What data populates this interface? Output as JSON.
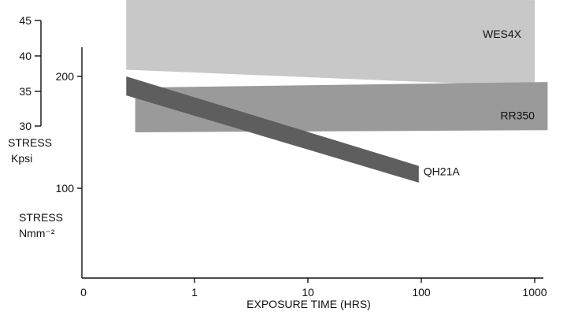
{
  "chart_data": {
    "type": "area",
    "x_scale": "log",
    "xlabel": "EXPOSURE TIME (HRS)",
    "x_tick_labels": [
      "0",
      "1",
      "10",
      "100",
      "1000"
    ],
    "ylabel_left_inner": [
      "STRESS",
      "Kpsi"
    ],
    "ylabel_left_outer": [
      "STRESS",
      "Nmm⁻²"
    ],
    "y_ticks_kpsi": [
      "45",
      "40",
      "35",
      "30"
    ],
    "y_ticks_nmm": [
      "200",
      "100"
    ],
    "series": [
      {
        "name": "WES4X",
        "color": "#c8c8c8",
        "x": [
          0.25,
          1000
        ],
        "upper_nmm": [
          306,
          268
        ],
        "lower_nmm": [
          206,
          191
        ]
      },
      {
        "name": "RR350",
        "color": "#9a9a9a",
        "x": [
          0.3,
          1300
        ],
        "upper_nmm": [
          190,
          195
        ],
        "lower_nmm": [
          150,
          152
        ]
      },
      {
        "name": "QH21A",
        "color": "#5e5e5e",
        "x": [
          0.25,
          95
        ],
        "upper_nmm": [
          200,
          120
        ],
        "lower_nmm": [
          183,
          105
        ]
      }
    ],
    "grid": false,
    "legend": "inline labels at right end of each band"
  }
}
